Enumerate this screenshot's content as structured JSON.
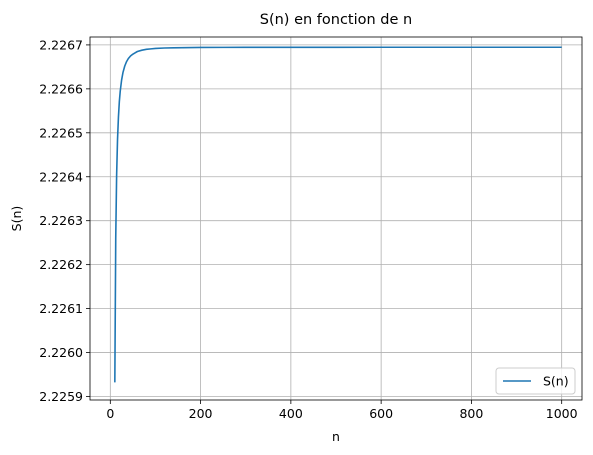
{
  "chart_data": {
    "type": "line",
    "title": "S(n) en fonction de n",
    "xlabel": "n",
    "ylabel": "S(n)",
    "xlim": [
      -45,
      1045
    ],
    "ylim": [
      2.225892,
      2.226718
    ],
    "x_ticks": [
      0,
      200,
      400,
      600,
      800,
      1000
    ],
    "x_tick_labels": [
      "0",
      "200",
      "400",
      "600",
      "800",
      "1000"
    ],
    "y_ticks": [
      2.2259,
      2.226,
      2.2261,
      2.2262,
      2.2263,
      2.2264,
      2.2265,
      2.2266,
      2.2267
    ],
    "y_tick_labels": [
      "2.2259",
      "2.2260",
      "2.2261",
      "2.2262",
      "2.2263",
      "2.2264",
      "2.2265",
      "2.2266",
      "2.2267"
    ],
    "grid": true,
    "legend_position": "lower-right",
    "series": [
      {
        "name": "S(n)",
        "color": "#1f77b4",
        "x": [
          10,
          12,
          14,
          16,
          18,
          20,
          22,
          25,
          28,
          32,
          36,
          40,
          45,
          50,
          55,
          60,
          70,
          80,
          90,
          100,
          120,
          140,
          160,
          180,
          200,
          250,
          300,
          400,
          500,
          600,
          700,
          800,
          900,
          1000
        ],
        "y": [
          2.225932,
          2.226259,
          2.226404,
          2.226485,
          2.226536,
          2.226571,
          2.226595,
          2.22662,
          2.226637,
          2.226652,
          2.226662,
          2.226669,
          2.226675,
          2.226679,
          2.226682,
          2.226685,
          2.226688,
          2.22669,
          2.226691,
          2.226692,
          2.226693,
          2.2266935,
          2.2266938,
          2.226694,
          2.2266942,
          2.2266944,
          2.2266945,
          2.2266946,
          2.2266946,
          2.2266947,
          2.2266947,
          2.2266947,
          2.2266947,
          2.2266947
        ]
      }
    ]
  }
}
